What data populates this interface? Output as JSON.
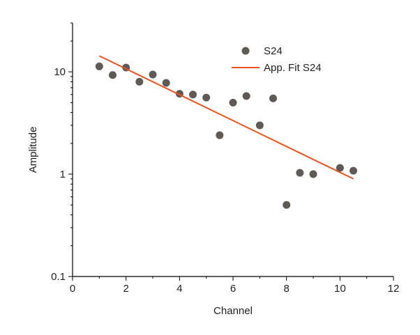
{
  "chart_data": {
    "type": "scatter",
    "title": "",
    "xlabel": "Channel",
    "ylabel": "Amplitude",
    "xlim": [
      0,
      12
    ],
    "ylim": [
      0.1,
      30
    ],
    "yscale": "log",
    "grid": false,
    "legend_position": "top-right",
    "x_ticks": [
      0,
      2,
      4,
      6,
      8,
      10,
      12
    ],
    "x_tick_labels": [
      "0",
      "2",
      "4",
      "6",
      "8",
      "10",
      "12"
    ],
    "y_ticks": [
      0.1,
      1,
      10
    ],
    "y_tick_labels": [
      "0.1",
      "1",
      "10"
    ],
    "series": [
      {
        "name": "S24",
        "kind": "scatter",
        "color": "#5f5a55",
        "x": [
          1,
          1.5,
          2,
          2.5,
          3,
          3.5,
          4,
          4.5,
          5,
          5.5,
          6,
          6.5,
          7,
          7.5,
          8,
          8.5,
          9,
          10,
          10.5
        ],
        "y": [
          11.3,
          9.3,
          11.0,
          8.0,
          9.4,
          7.8,
          6.1,
          6.0,
          5.6,
          2.4,
          5.0,
          5.8,
          3.0,
          5.5,
          0.5,
          1.03,
          1.0,
          1.15,
          1.08
        ]
      },
      {
        "name": "App. Fit S24",
        "kind": "line",
        "color": "#e8521e",
        "x": [
          1,
          10.5
        ],
        "y": [
          14.3,
          0.9
        ]
      }
    ]
  }
}
